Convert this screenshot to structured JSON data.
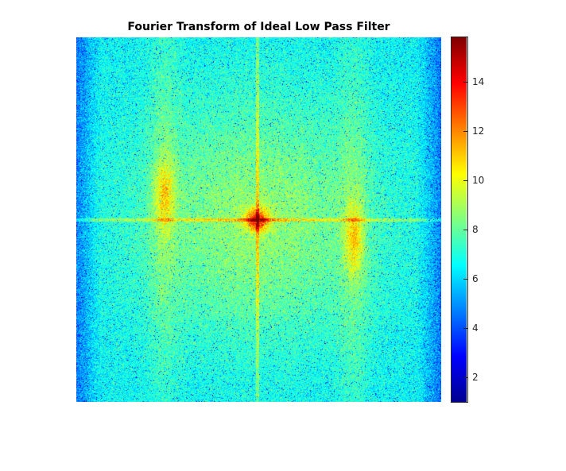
{
  "chart_data": {
    "type": "heatmap",
    "title": "Fourier Transform of Ideal Low Pass Filter",
    "xlabel": "",
    "ylabel": "",
    "axes_visible": false,
    "colormap": "jet",
    "colorbar": {
      "range": [
        1,
        15.8
      ],
      "ticks": [
        2,
        4,
        6,
        8,
        10,
        12,
        14
      ],
      "tick_labels": [
        "2",
        "4",
        "6",
        "8",
        "10",
        "12",
        "14"
      ]
    },
    "description_values": {
      "background_level": 6.5,
      "edge_level": 4.5,
      "center_peak": 15.8,
      "axis_cross_level": 9.5,
      "side_lobe_level": 11.5
    },
    "features": [
      {
        "kind": "peak",
        "location": "center",
        "value": 15.8
      },
      {
        "kind": "cross-lines",
        "location": "horizontal and vertical through center",
        "value": 9.5
      },
      {
        "kind": "side-blobs",
        "location": "left and right of center",
        "value": 11.5
      }
    ]
  },
  "colors": {
    "frame": "#262626",
    "background": "#ffffff"
  }
}
